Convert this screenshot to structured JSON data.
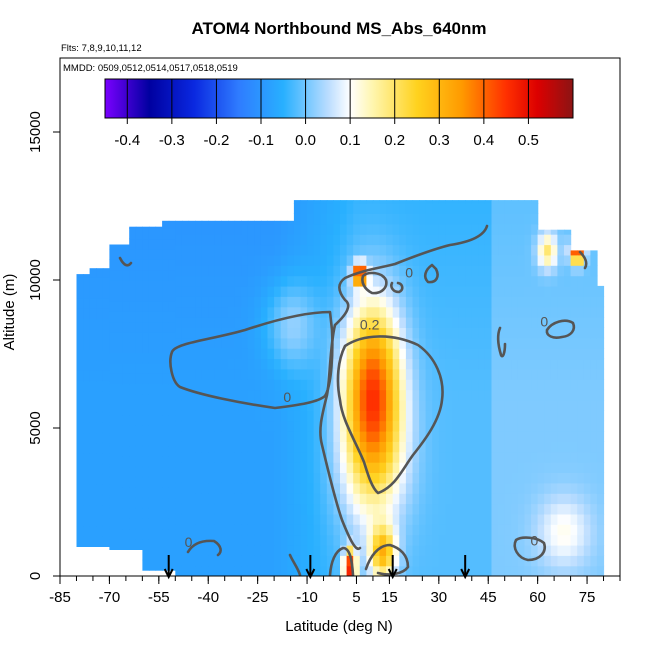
{
  "chart_data": {
    "type": "heatmap",
    "title": "ATOM4 Northbound MS_Abs_640nm",
    "flights_label": "Flts: 7,8,9,10,11,12",
    "dates_label": "MMDD: 0509,0512,0514,0517,0518,0519",
    "xlabel": "Latitude (deg N)",
    "ylabel": "Altitude (m)",
    "xlim": [
      -85,
      85
    ],
    "ylim": [
      0,
      17500
    ],
    "x_ticks": [
      -85,
      -70,
      -55,
      -40,
      -25,
      -10,
      5,
      15,
      30,
      45,
      60,
      75
    ],
    "x_tick_labels": [
      "-85",
      "-70",
      "-55",
      "-40",
      "-25",
      "-10",
      "5",
      "15",
      "30",
      "45",
      "60",
      "75"
    ],
    "y_ticks": [
      0,
      5000,
      10000,
      15000
    ],
    "y_tick_labels": [
      "0",
      "5000",
      "10000",
      "15000"
    ],
    "colorbar": {
      "range": [
        -0.45,
        0.6
      ],
      "ticks": [
        -0.4,
        -0.3,
        -0.2,
        -0.1,
        0.0,
        0.1,
        0.2,
        0.3,
        0.4,
        0.5
      ],
      "tick_labels": [
        "-0.4",
        "-0.3",
        "-0.2",
        "-0.1",
        "0.0",
        "0.1",
        "0.2",
        "0.3",
        "0.4",
        "0.5"
      ],
      "stops": [
        {
          "v": -0.45,
          "color": "#7a00ff"
        },
        {
          "v": -0.35,
          "color": "#0000a0"
        },
        {
          "v": -0.25,
          "color": "#0a28e0"
        },
        {
          "v": -0.15,
          "color": "#2f7cff"
        },
        {
          "v": -0.05,
          "color": "#28b0ff"
        },
        {
          "v": 0.05,
          "color": "#b9dcff"
        },
        {
          "v": 0.1,
          "color": "#ffffff"
        },
        {
          "v": 0.15,
          "color": "#fff6b0"
        },
        {
          "v": 0.25,
          "color": "#ffd21e"
        },
        {
          "v": 0.35,
          "color": "#ff9a00"
        },
        {
          "v": 0.45,
          "color": "#ff3000"
        },
        {
          "v": 0.52,
          "color": "#dc0000"
        },
        {
          "v": 0.6,
          "color": "#8c1414"
        }
      ]
    },
    "contour_labels": [
      {
        "text": "0",
        "lat": -16,
        "alt": 6050
      },
      {
        "text": "0",
        "lat": 21,
        "alt": 10250
      },
      {
        "text": "0.2",
        "lat": 9,
        "alt": 8500
      },
      {
        "text": "0",
        "lat": -46,
        "alt": 1150
      },
      {
        "text": "0",
        "lat": 59,
        "alt": 1200
      },
      {
        "text": "0",
        "lat": 62,
        "alt": 8600
      }
    ],
    "profile_arrows_lat": [
      -52,
      -9,
      16,
      38
    ]
  }
}
